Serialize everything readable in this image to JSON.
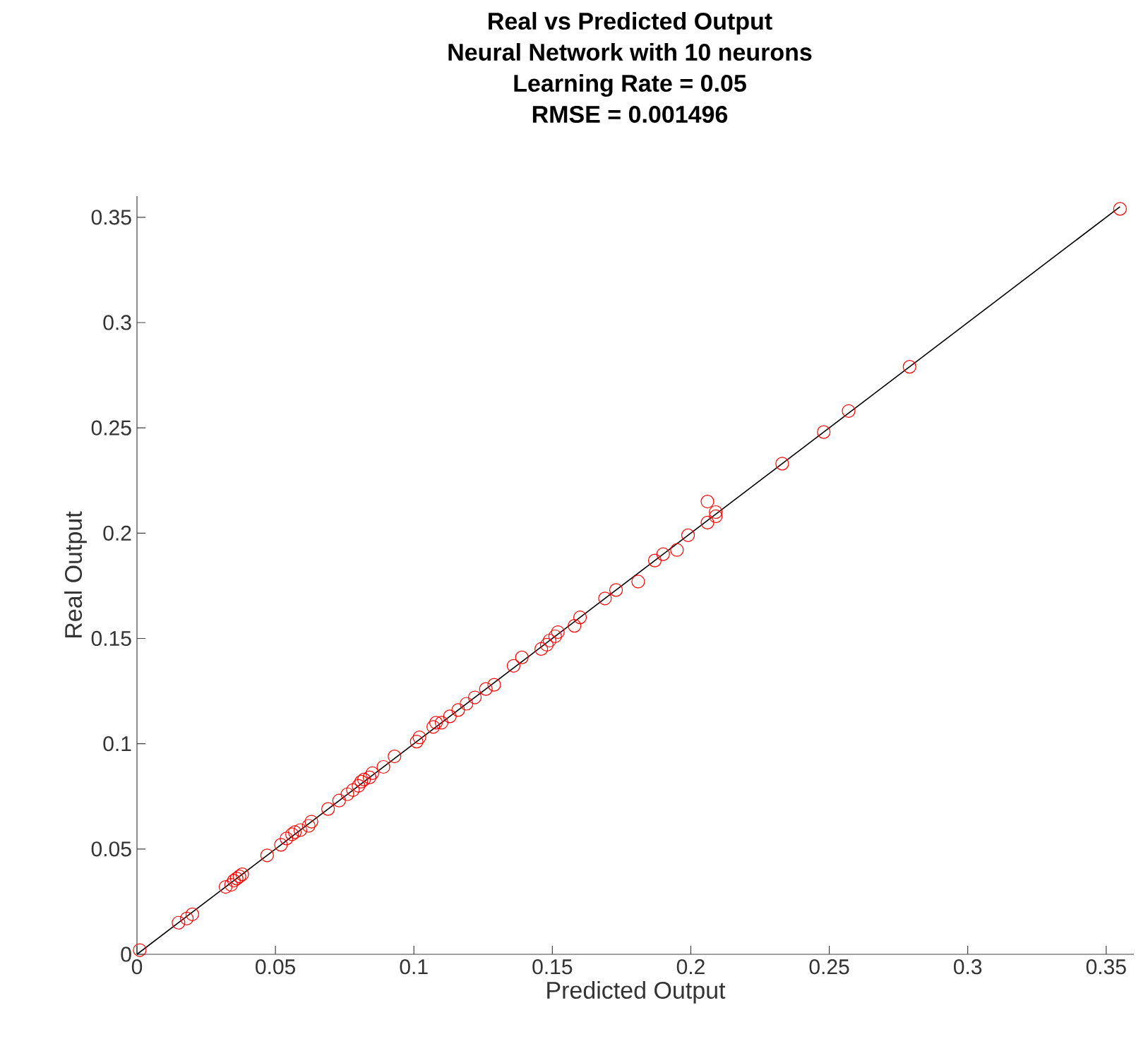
{
  "chart_data": {
    "type": "scatter",
    "title": "Real vs Predicted Output",
    "subtitle": "Neural Network with 10 neurons",
    "annotations": [
      "Learning Rate = 0.05",
      "RMSE = 0.001496"
    ],
    "xlabel": "Predicted Output",
    "ylabel": "Real Output",
    "xlim": [
      0,
      0.36
    ],
    "ylim": [
      0,
      0.36
    ],
    "xticks": [
      0,
      0.05,
      0.1,
      0.15,
      0.2,
      0.25,
      0.3,
      0.35
    ],
    "yticks": [
      0,
      0.05,
      0.1,
      0.15,
      0.2,
      0.25,
      0.3,
      0.35
    ],
    "grid": false,
    "marker": "circle",
    "series": [
      {
        "color": "#ff0000",
        "x": [
          0.001,
          0.015,
          0.018,
          0.02,
          0.032,
          0.034,
          0.035,
          0.036,
          0.037,
          0.038,
          0.047,
          0.052,
          0.054,
          0.056,
          0.057,
          0.059,
          0.062,
          0.063,
          0.069,
          0.073,
          0.076,
          0.078,
          0.08,
          0.081,
          0.082,
          0.084,
          0.085,
          0.089,
          0.093,
          0.101,
          0.102,
          0.107,
          0.108,
          0.11,
          0.113,
          0.116,
          0.119,
          0.122,
          0.126,
          0.129,
          0.136,
          0.139,
          0.146,
          0.148,
          0.149,
          0.151,
          0.152,
          0.158,
          0.16,
          0.169,
          0.173,
          0.181,
          0.187,
          0.19,
          0.195,
          0.199,
          0.206,
          0.206,
          0.209,
          0.209,
          0.233,
          0.248,
          0.257,
          0.279,
          0.355
        ],
        "values": [
          0.002,
          0.015,
          0.017,
          0.019,
          0.032,
          0.033,
          0.035,
          0.036,
          0.037,
          0.038,
          0.047,
          0.052,
          0.055,
          0.057,
          0.058,
          0.059,
          0.061,
          0.063,
          0.069,
          0.073,
          0.076,
          0.078,
          0.08,
          0.082,
          0.083,
          0.084,
          0.086,
          0.089,
          0.094,
          0.101,
          0.103,
          0.108,
          0.11,
          0.11,
          0.113,
          0.116,
          0.119,
          0.122,
          0.126,
          0.128,
          0.137,
          0.141,
          0.145,
          0.147,
          0.149,
          0.151,
          0.153,
          0.156,
          0.16,
          0.169,
          0.173,
          0.177,
          0.187,
          0.19,
          0.192,
          0.199,
          0.205,
          0.215,
          0.208,
          0.21,
          0.233,
          0.248,
          0.258,
          0.279,
          0.354
        ]
      },
      {
        "type": "line",
        "color": "#000000",
        "marker": "none",
        "line_style": "solid",
        "x": [
          0,
          0.355
        ],
        "values": [
          0,
          0.355
        ]
      }
    ]
  }
}
